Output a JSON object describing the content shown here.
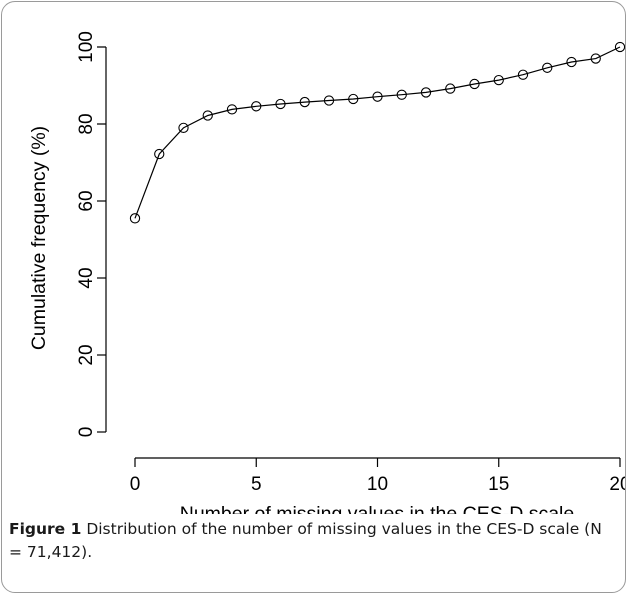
{
  "figure": {
    "label": "Figure 1",
    "caption": "Distribution of the number of missing values in the CES-D scale (N = 71,412)."
  },
  "chart_data": {
    "type": "line",
    "markers": "open-circle",
    "xlabel": "Number of missing values in the CES-D scale",
    "ylabel": "Cumulative frequency (%)",
    "xlim": [
      0,
      20
    ],
    "ylim": [
      0,
      100
    ],
    "xticks": [
      0,
      5,
      10,
      15,
      20
    ],
    "yticks": [
      0,
      20,
      40,
      60,
      80,
      100
    ],
    "grid": false,
    "x": [
      0,
      1,
      2,
      3,
      4,
      5,
      6,
      7,
      8,
      9,
      10,
      11,
      12,
      13,
      14,
      15,
      16,
      17,
      18,
      19,
      20
    ],
    "series": [
      {
        "values": [
          55.5,
          72.2,
          79.0,
          82.2,
          83.8,
          84.6,
          85.2,
          85.7,
          86.1,
          86.5,
          87.1,
          87.6,
          88.2,
          89.2,
          90.4,
          91.4,
          92.8,
          94.6,
          96.1,
          97.0,
          100.0
        ]
      }
    ]
  }
}
